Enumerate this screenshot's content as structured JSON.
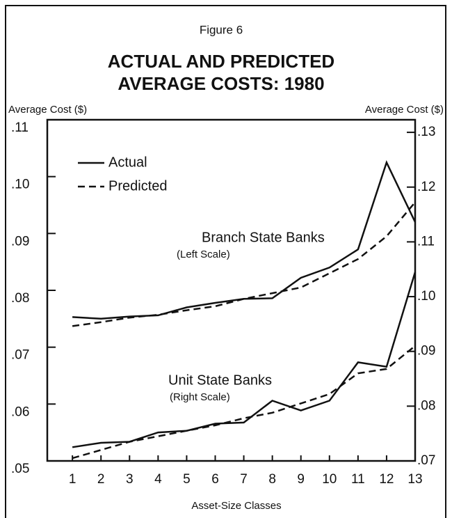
{
  "chart_data": {
    "type": "line",
    "figure_label": "Figure 6",
    "title": [
      "ACTUAL AND PREDICTED",
      "AVERAGE COSTS: 1980"
    ],
    "ylabel": "Average Cost ($)",
    "y2label": "Average Cost ($)",
    "xlabel": "Asset-Size Classes",
    "x": [
      1,
      2,
      3,
      4,
      5,
      6,
      7,
      8,
      9,
      10,
      11,
      12,
      13
    ],
    "xlim": [
      0.12,
      13
    ],
    "xticks": [
      1,
      2,
      3,
      4,
      5,
      6,
      7,
      8,
      9,
      10,
      11,
      12,
      13
    ],
    "ylim": [
      0.05,
      0.11
    ],
    "yticks": [
      {
        "value": 0.05,
        "label": ".05"
      },
      {
        "value": 0.06,
        "label": ".06"
      },
      {
        "value": 0.07,
        "label": ".07"
      },
      {
        "value": 0.08,
        "label": ".08"
      },
      {
        "value": 0.09,
        "label": ".09"
      },
      {
        "value": 0.1,
        "label": ".10"
      },
      {
        "value": 0.11,
        "label": ".11"
      }
    ],
    "y2lim": [
      0.07,
      0.1323
    ],
    "y2ticks": [
      {
        "value": 0.07,
        "label": ".07"
      },
      {
        "value": 0.08,
        "label": ".08"
      },
      {
        "value": 0.09,
        "label": ".09"
      },
      {
        "value": 0.1,
        "label": ".10"
      },
      {
        "value": 0.11,
        "label": ".11"
      },
      {
        "value": 0.12,
        "label": ".12"
      },
      {
        "value": 0.13,
        "label": ".13"
      }
    ],
    "color": "#111111",
    "groups": [
      {
        "label": "Branch State Banks",
        "scale": "(Left Scale)",
        "axis": "y",
        "series": [
          {
            "name": "Actual",
            "dashed": false,
            "values": [
              0.0753,
              0.075,
              0.0754,
              0.0756,
              0.077,
              0.0778,
              0.0785,
              0.0786,
              0.0822,
              0.084,
              0.0872,
              0.1025,
              0.092
            ]
          },
          {
            "name": "Predicted",
            "dashed": true,
            "values": [
              0.0737,
              0.0744,
              0.0752,
              0.0757,
              0.0765,
              0.0772,
              0.0785,
              0.0795,
              0.0805,
              0.083,
              0.0855,
              0.0895,
              0.0955
            ]
          }
        ]
      },
      {
        "label": "Unit State Banks",
        "scale": "(Right Scale)",
        "axis": "y2",
        "series": [
          {
            "name": "Actual",
            "dashed": false,
            "values": [
              0.0725,
              0.0733,
              0.0735,
              0.0752,
              0.0755,
              0.0768,
              0.077,
              0.081,
              0.0792,
              0.081,
              0.088,
              0.0872,
              0.1045
            ]
          },
          {
            "name": "Predicted",
            "dashed": true,
            "values": [
              0.0705,
              0.072,
              0.0735,
              0.0745,
              0.0755,
              0.0765,
              0.0778,
              0.0788,
              0.0805,
              0.0822,
              0.086,
              0.0868,
              0.091
            ]
          }
        ]
      }
    ]
  }
}
